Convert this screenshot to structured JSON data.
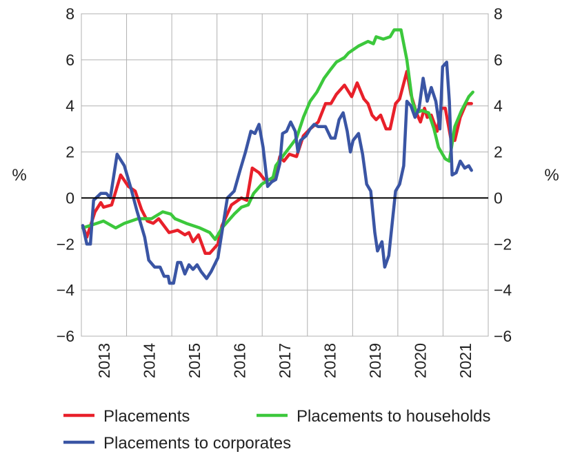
{
  "chart_data": {
    "type": "line",
    "title": "",
    "ylabel_left": "%",
    "ylabel_right": "%",
    "ylim": [
      -6,
      8
    ],
    "yticks": [
      -6,
      -4,
      -2,
      0,
      2,
      4,
      6,
      8
    ],
    "ytick_labels": [
      "−6",
      "−4",
      "−2",
      "0",
      "2",
      "4",
      "6",
      "8"
    ],
    "xlim": [
      2013,
      2022
    ],
    "xtick_labels": [
      "2013",
      "2014",
      "2015",
      "2016",
      "2017",
      "2018",
      "2019",
      "2020",
      "2021"
    ],
    "grid": true,
    "legend_position": "bottom",
    "series": [
      {
        "name": "Placements",
        "color": "#e8202a",
        "points": [
          [
            2013.03,
            -1.2
          ],
          [
            2013.12,
            -1.7
          ],
          [
            2013.3,
            -0.6
          ],
          [
            2013.43,
            -0.2
          ],
          [
            2013.49,
            -0.4
          ],
          [
            2013.67,
            -0.3
          ],
          [
            2013.87,
            1.0
          ],
          [
            2014.04,
            0.5
          ],
          [
            2014.19,
            0.3
          ],
          [
            2014.33,
            -0.5
          ],
          [
            2014.46,
            -1.0
          ],
          [
            2014.59,
            -1.1
          ],
          [
            2014.71,
            -0.9
          ],
          [
            2014.94,
            -1.5
          ],
          [
            2015.13,
            -1.4
          ],
          [
            2015.29,
            -1.6
          ],
          [
            2015.38,
            -1.5
          ],
          [
            2015.47,
            -1.9
          ],
          [
            2015.59,
            -1.6
          ],
          [
            2015.74,
            -2.4
          ],
          [
            2015.84,
            -2.4
          ],
          [
            2016.02,
            -2.0
          ],
          [
            2016.11,
            -1.2
          ],
          [
            2016.32,
            -0.3
          ],
          [
            2016.54,
            0.0
          ],
          [
            2016.66,
            -0.1
          ],
          [
            2016.78,
            1.3
          ],
          [
            2016.93,
            1.1
          ],
          [
            2017.05,
            0.8
          ],
          [
            2017.21,
            0.8
          ],
          [
            2017.3,
            1.0
          ],
          [
            2017.39,
            1.8
          ],
          [
            2017.48,
            1.6
          ],
          [
            2017.6,
            1.9
          ],
          [
            2017.76,
            1.8
          ],
          [
            2017.91,
            2.7
          ],
          [
            2018.06,
            3.0
          ],
          [
            2018.24,
            3.3
          ],
          [
            2018.4,
            4.1
          ],
          [
            2018.52,
            4.1
          ],
          [
            2018.64,
            4.5
          ],
          [
            2018.82,
            4.9
          ],
          [
            2018.98,
            4.4
          ],
          [
            2019.1,
            5.0
          ],
          [
            2019.25,
            4.3
          ],
          [
            2019.34,
            4.1
          ],
          [
            2019.43,
            3.6
          ],
          [
            2019.52,
            3.4
          ],
          [
            2019.62,
            3.6
          ],
          [
            2019.74,
            3.0
          ],
          [
            2019.83,
            3.0
          ],
          [
            2019.95,
            4.1
          ],
          [
            2020.04,
            4.3
          ],
          [
            2020.2,
            5.5
          ],
          [
            2020.29,
            4.5
          ],
          [
            2020.41,
            3.7
          ],
          [
            2020.5,
            3.3
          ],
          [
            2020.59,
            3.9
          ],
          [
            2020.65,
            3.5
          ],
          [
            2020.74,
            3.6
          ],
          [
            2020.87,
            2.9
          ],
          [
            2020.96,
            3.9
          ],
          [
            2021.05,
            3.9
          ],
          [
            2021.17,
            2.6
          ],
          [
            2021.26,
            2.5
          ],
          [
            2021.38,
            3.5
          ],
          [
            2021.51,
            4.1
          ],
          [
            2021.63,
            4.1
          ]
        ]
      },
      {
        "name": "Placements to households",
        "color": "#3cc83c",
        "points": [
          [
            2013.03,
            -1.3
          ],
          [
            2013.34,
            -1.1
          ],
          [
            2013.49,
            -1.0
          ],
          [
            2013.76,
            -1.3
          ],
          [
            2013.95,
            -1.1
          ],
          [
            2014.25,
            -0.9
          ],
          [
            2014.55,
            -0.9
          ],
          [
            2014.8,
            -0.6
          ],
          [
            2014.98,
            -0.7
          ],
          [
            2015.07,
            -0.9
          ],
          [
            2015.32,
            -1.1
          ],
          [
            2015.62,
            -1.3
          ],
          [
            2015.84,
            -1.5
          ],
          [
            2015.96,
            -1.8
          ],
          [
            2016.11,
            -1.3
          ],
          [
            2016.38,
            -0.7
          ],
          [
            2016.54,
            -0.4
          ],
          [
            2016.69,
            -0.3
          ],
          [
            2016.81,
            0.2
          ],
          [
            2016.99,
            0.6
          ],
          [
            2017.24,
            0.9
          ],
          [
            2017.3,
            1.4
          ],
          [
            2017.45,
            1.8
          ],
          [
            2017.76,
            2.6
          ],
          [
            2017.91,
            3.5
          ],
          [
            2018.06,
            4.2
          ],
          [
            2018.21,
            4.6
          ],
          [
            2018.37,
            5.2
          ],
          [
            2018.52,
            5.6
          ],
          [
            2018.64,
            5.9
          ],
          [
            2018.82,
            6.1
          ],
          [
            2018.91,
            6.3
          ],
          [
            2019.13,
            6.6
          ],
          [
            2019.34,
            6.8
          ],
          [
            2019.46,
            6.7
          ],
          [
            2019.52,
            7.0
          ],
          [
            2019.68,
            6.9
          ],
          [
            2019.83,
            7.0
          ],
          [
            2019.92,
            7.3
          ],
          [
            2020.07,
            7.3
          ],
          [
            2020.2,
            6.0
          ],
          [
            2020.32,
            4.2
          ],
          [
            2020.41,
            3.7
          ],
          [
            2020.53,
            3.8
          ],
          [
            2020.68,
            3.7
          ],
          [
            2020.8,
            3.0
          ],
          [
            2020.9,
            2.2
          ],
          [
            2021.05,
            1.7
          ],
          [
            2021.14,
            1.6
          ],
          [
            2021.26,
            3.1
          ],
          [
            2021.41,
            3.8
          ],
          [
            2021.57,
            4.4
          ],
          [
            2021.66,
            4.6
          ]
        ]
      },
      {
        "name": "Placements to corporates",
        "color": "#3a55a4",
        "points": [
          [
            2013.03,
            -1.2
          ],
          [
            2013.12,
            -2.0
          ],
          [
            2013.2,
            -2.0
          ],
          [
            2013.27,
            -0.1
          ],
          [
            2013.43,
            0.2
          ],
          [
            2013.55,
            0.2
          ],
          [
            2013.64,
            0.0
          ],
          [
            2013.79,
            1.9
          ],
          [
            2013.95,
            1.4
          ],
          [
            2014.1,
            0.4
          ],
          [
            2014.22,
            -0.5
          ],
          [
            2014.4,
            -1.7
          ],
          [
            2014.49,
            -2.7
          ],
          [
            2014.62,
            -3.0
          ],
          [
            2014.74,
            -3.0
          ],
          [
            2014.83,
            -3.4
          ],
          [
            2014.92,
            -3.4
          ],
          [
            2014.95,
            -3.7
          ],
          [
            2015.04,
            -3.7
          ],
          [
            2015.13,
            -2.8
          ],
          [
            2015.2,
            -2.8
          ],
          [
            2015.29,
            -3.3
          ],
          [
            2015.38,
            -2.9
          ],
          [
            2015.47,
            -3.1
          ],
          [
            2015.56,
            -2.9
          ],
          [
            2015.65,
            -3.2
          ],
          [
            2015.77,
            -3.5
          ],
          [
            2015.87,
            -3.2
          ],
          [
            2016.02,
            -2.6
          ],
          [
            2016.23,
            0.0
          ],
          [
            2016.38,
            0.3
          ],
          [
            2016.51,
            1.2
          ],
          [
            2016.63,
            2.0
          ],
          [
            2016.75,
            2.9
          ],
          [
            2016.84,
            2.8
          ],
          [
            2016.93,
            3.2
          ],
          [
            2017.02,
            2.2
          ],
          [
            2017.12,
            0.5
          ],
          [
            2017.21,
            0.7
          ],
          [
            2017.3,
            0.8
          ],
          [
            2017.39,
            1.5
          ],
          [
            2017.45,
            2.8
          ],
          [
            2017.54,
            2.9
          ],
          [
            2017.63,
            3.3
          ],
          [
            2017.73,
            2.9
          ],
          [
            2017.79,
            2.0
          ],
          [
            2017.85,
            2.5
          ],
          [
            2017.97,
            2.7
          ],
          [
            2018.06,
            3.0
          ],
          [
            2018.15,
            3.2
          ],
          [
            2018.24,
            3.1
          ],
          [
            2018.4,
            3.1
          ],
          [
            2018.52,
            2.6
          ],
          [
            2018.61,
            2.6
          ],
          [
            2018.7,
            3.4
          ],
          [
            2018.79,
            3.7
          ],
          [
            2018.88,
            2.9
          ],
          [
            2018.95,
            2.0
          ],
          [
            2019.01,
            2.5
          ],
          [
            2019.13,
            2.8
          ],
          [
            2019.22,
            1.9
          ],
          [
            2019.31,
            0.6
          ],
          [
            2019.4,
            0.3
          ],
          [
            2019.49,
            -1.5
          ],
          [
            2019.55,
            -2.3
          ],
          [
            2019.65,
            -1.9
          ],
          [
            2019.71,
            -3.0
          ],
          [
            2019.8,
            -2.5
          ],
          [
            2019.95,
            0.3
          ],
          [
            2020.04,
            0.6
          ],
          [
            2020.13,
            1.4
          ],
          [
            2020.2,
            4.2
          ],
          [
            2020.29,
            4.0
          ],
          [
            2020.38,
            3.5
          ],
          [
            2020.47,
            3.9
          ],
          [
            2020.56,
            5.2
          ],
          [
            2020.65,
            4.2
          ],
          [
            2020.74,
            4.8
          ],
          [
            2020.84,
            4.2
          ],
          [
            2020.93,
            3.0
          ],
          [
            2020.99,
            5.7
          ],
          [
            2021.08,
            5.9
          ],
          [
            2021.14,
            4.2
          ],
          [
            2021.2,
            1.0
          ],
          [
            2021.29,
            1.1
          ],
          [
            2021.38,
            1.6
          ],
          [
            2021.48,
            1.3
          ],
          [
            2021.57,
            1.4
          ],
          [
            2021.63,
            1.2
          ]
        ]
      }
    ]
  }
}
